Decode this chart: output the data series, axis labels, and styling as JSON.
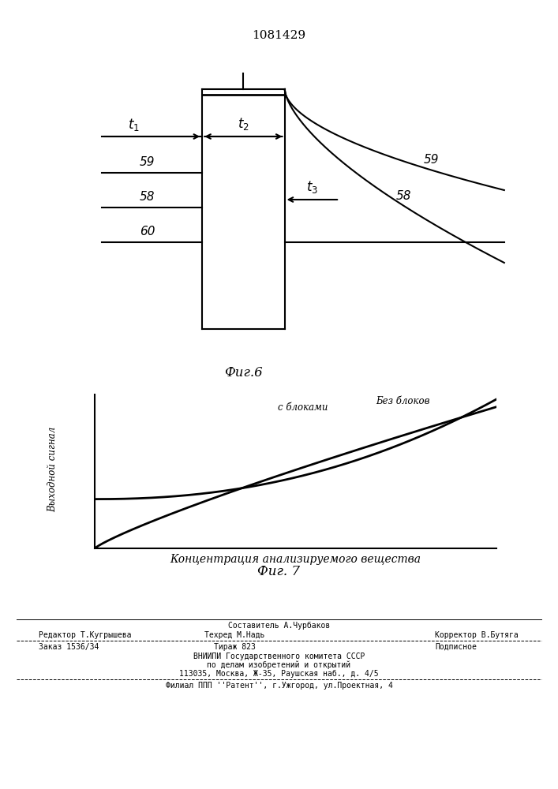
{
  "title": "1081429",
  "title_fontsize": 11,
  "fig6_caption": "Фиг.6",
  "fig7_caption": "Фиг. 7",
  "fig7_ylabel": "Выходной сигнал",
  "fig7_xlabel": "Концентрация анализируемого вещества",
  "fig7_label_s_blokami": "с блоками",
  "fig7_label_bez_blokov": "Без блоков",
  "footer_line1": "Составитель А.Чурбаков",
  "footer_line2_left": "Редактор Т.Кугрышева",
  "footer_line2_mid": "Техред М.Надь",
  "footer_line2_right": "Корректор В.Бутяга",
  "footer_line3_left": "Заказ 1536/34",
  "footer_line3_mid": "Тираж 823",
  "footer_line3_right": "Подписное",
  "footer_line4": "ВНИИПИ Государственного комитета СССР",
  "footer_line5": "по делам изобретений и открытий",
  "footer_line6": "113035, Москва, Ж-35, Раушская наб., д. 4/5",
  "footer_line7": "Филиал ППП ''Pатент'', г.Ужгород, ул.Проектная, 4",
  "bg_color": "#ffffff",
  "line_color": "#000000"
}
